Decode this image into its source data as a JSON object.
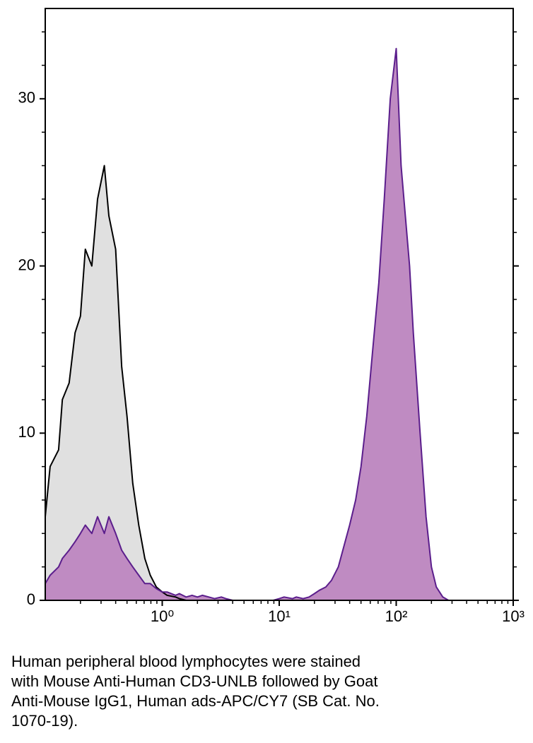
{
  "chart_data": {
    "type": "histogram-overlay",
    "x": [
      0.1,
      0.11,
      0.13,
      0.14,
      0.16,
      0.18,
      0.2,
      0.22,
      0.25,
      0.28,
      0.32,
      0.35,
      0.4,
      0.45,
      0.5,
      0.56,
      0.63,
      0.71,
      0.79,
      0.89,
      1,
      1.1,
      1.3,
      1.4,
      1.6,
      1.8,
      2,
      2.2,
      2.5,
      2.8,
      3.2,
      3.5,
      4,
      4.5,
      5,
      5.6,
      6.3,
      7.1,
      7.9,
      8.9,
      10,
      11,
      13,
      14,
      16,
      18,
      20,
      22,
      25,
      28,
      32,
      35,
      40,
      45,
      50,
      56,
      63,
      71,
      79,
      89,
      100,
      110,
      130,
      140,
      160,
      180,
      200,
      220,
      250,
      280,
      320
    ],
    "series": [
      {
        "color": "#e0e0e0",
        "line_color": "#000000",
        "values": [
          5,
          8,
          9,
          12,
          13,
          16,
          17,
          21,
          20,
          24,
          26,
          23,
          21,
          14,
          11,
          7,
          4.5,
          2.5,
          1.5,
          0.8,
          0.5,
          0.3,
          0.2,
          0.1,
          0,
          0,
          0,
          0,
          0,
          0,
          0,
          0,
          0,
          0,
          0,
          0,
          0,
          0,
          0,
          0,
          0,
          0,
          0,
          0,
          0,
          0,
          0,
          0,
          0,
          0,
          0,
          0,
          0,
          0,
          0,
          0,
          0,
          0,
          0,
          0,
          0,
          0,
          0,
          0,
          0,
          0,
          0,
          0,
          0,
          0,
          0
        ]
      },
      {
        "color": "#bf8bc2",
        "line_color": "#5b1e8c",
        "values": [
          1,
          1.5,
          2,
          2.5,
          3,
          3.5,
          4,
          4.5,
          4,
          5,
          4,
          5,
          4,
          3,
          2.5,
          2,
          1.5,
          1,
          1,
          0.7,
          0.5,
          0.5,
          0.3,
          0.4,
          0.2,
          0.3,
          0.2,
          0.3,
          0.2,
          0.1,
          0.2,
          0.1,
          0,
          0,
          0,
          0,
          0,
          0,
          0,
          0,
          0.1,
          0.2,
          0.1,
          0.2,
          0.1,
          0.2,
          0.4,
          0.6,
          0.8,
          1.2,
          2,
          3,
          4.5,
          6,
          8,
          11,
          15,
          19,
          24,
          30,
          33,
          26,
          20,
          16,
          10,
          5,
          2,
          0.8,
          0.2,
          0,
          0
        ]
      }
    ],
    "xscale": "log",
    "xlim": [
      0.1,
      1000
    ],
    "xticks": [
      {
        "value": 1,
        "label": "10⁰"
      },
      {
        "value": 10,
        "label": "10¹"
      },
      {
        "value": 100,
        "label": "10²"
      },
      {
        "value": 1000,
        "label": "10³"
      }
    ],
    "xminorticks": [
      0.2,
      0.3,
      0.4,
      0.5,
      0.6,
      0.7,
      0.8,
      0.9,
      2,
      3,
      4,
      5,
      6,
      7,
      8,
      9,
      20,
      30,
      40,
      50,
      60,
      70,
      80,
      90,
      200,
      300,
      400,
      500,
      600,
      700,
      800,
      900
    ],
    "ylim": [
      0,
      35.4
    ],
    "yticks": [
      0,
      10,
      20,
      30
    ],
    "yminorticks": [
      2,
      4,
      6,
      8,
      12,
      14,
      16,
      18,
      22,
      24,
      26,
      28,
      32,
      34
    ],
    "caption": [
      "Human peripheral blood lymphocytes were stained",
      "with Mouse Anti-Human CD3-UNLB followed by Goat",
      "Anti-Mouse IgG1, Human ads-APC/CY7 (SB Cat. No.",
      "1070-19)."
    ]
  }
}
